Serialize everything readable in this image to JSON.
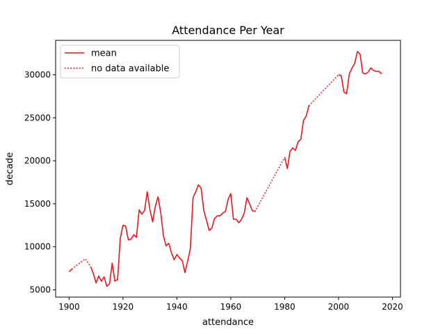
{
  "chart_data": {
    "type": "line",
    "title": "Attendance Per Year",
    "xlabel": "attendance",
    "ylabel": "decade",
    "xlim": [
      1895,
      2023
    ],
    "ylim": [
      4150,
      34000
    ],
    "xticks": [
      1900,
      1920,
      1940,
      1960,
      1980,
      2000,
      2020
    ],
    "yticks": [
      5000,
      10000,
      15000,
      20000,
      25000,
      30000
    ],
    "grid": false,
    "legend_position": "top-left",
    "color": "#e8151a",
    "series": [
      {
        "name": "mean",
        "style": "solid",
        "segments": [
          [
            [
              1900,
              7100
            ],
            [
              1901,
              7400
            ]
          ],
          [
            [
              1908,
              7700
            ],
            [
              1909,
              6900
            ],
            [
              1910,
              5800
            ],
            [
              1911,
              6600
            ],
            [
              1912,
              6000
            ],
            [
              1913,
              6500
            ],
            [
              1914,
              5400
            ],
            [
              1915,
              5700
            ],
            [
              1916,
              8100
            ],
            [
              1917,
              6000
            ],
            [
              1918,
              6200
            ],
            [
              1919,
              11000
            ],
            [
              1920,
              12500
            ],
            [
              1921,
              12400
            ],
            [
              1922,
              10800
            ],
            [
              1923,
              10900
            ],
            [
              1924,
              11400
            ],
            [
              1925,
              11100
            ],
            [
              1926,
              14300
            ],
            [
              1927,
              13800
            ],
            [
              1928,
              14200
            ],
            [
              1929,
              16400
            ],
            [
              1930,
              14300
            ],
            [
              1931,
              12900
            ],
            [
              1932,
              14700
            ],
            [
              1933,
              15800
            ],
            [
              1934,
              14000
            ],
            [
              1935,
              11300
            ],
            [
              1936,
              10100
            ],
            [
              1937,
              10400
            ],
            [
              1938,
              9300
            ],
            [
              1939,
              8500
            ],
            [
              1940,
              9100
            ],
            [
              1941,
              8700
            ],
            [
              1942,
              8400
            ],
            [
              1943,
              7000
            ],
            [
              1944,
              8300
            ],
            [
              1945,
              9800
            ],
            [
              1946,
              15700
            ],
            [
              1947,
              16400
            ],
            [
              1948,
              17200
            ],
            [
              1949,
              16800
            ],
            [
              1950,
              14200
            ],
            [
              1951,
              13100
            ],
            [
              1952,
              11900
            ],
            [
              1953,
              12200
            ],
            [
              1954,
              13300
            ],
            [
              1955,
              13600
            ],
            [
              1956,
              13600
            ],
            [
              1957,
              13900
            ],
            [
              1958,
              14100
            ],
            [
              1959,
              15500
            ],
            [
              1960,
              16200
            ],
            [
              1961,
              13200
            ],
            [
              1962,
              13200
            ],
            [
              1963,
              12800
            ],
            [
              1964,
              13200
            ],
            [
              1965,
              13900
            ],
            [
              1966,
              15700
            ],
            [
              1967,
              15000
            ],
            [
              1968,
              14200
            ],
            [
              1969,
              14100
            ]
          ],
          [
            [
              1980,
              20400
            ],
            [
              1981,
              19100
            ],
            [
              1982,
              21100
            ],
            [
              1983,
              21500
            ],
            [
              1984,
              21200
            ],
            [
              1985,
              22200
            ],
            [
              1986,
              22500
            ],
            [
              1987,
              24700
            ],
            [
              1988,
              25200
            ],
            [
              1989,
              26400
            ]
          ],
          [
            [
              2000,
              30000
            ],
            [
              2001,
              29900
            ],
            [
              2002,
              28000
            ],
            [
              2003,
              27800
            ],
            [
              2004,
              30100
            ],
            [
              2005,
              30800
            ],
            [
              2006,
              31300
            ],
            [
              2007,
              32700
            ],
            [
              2008,
              32400
            ],
            [
              2009,
              30200
            ],
            [
              2010,
              30100
            ],
            [
              2011,
              30300
            ],
            [
              2012,
              30800
            ],
            [
              2013,
              30500
            ],
            [
              2014,
              30400
            ],
            [
              2015,
              30400
            ],
            [
              2016,
              30100
            ]
          ]
        ]
      },
      {
        "name": "no data available",
        "style": "dotted",
        "segments": [
          [
            [
              1901,
              7400
            ],
            [
              1906,
              8600
            ],
            [
              1908,
              7700
            ]
          ],
          [
            [
              1969,
              14100
            ],
            [
              1980,
              20400
            ]
          ],
          [
            [
              1989,
              26400
            ],
            [
              2000,
              30000
            ]
          ]
        ]
      }
    ]
  }
}
